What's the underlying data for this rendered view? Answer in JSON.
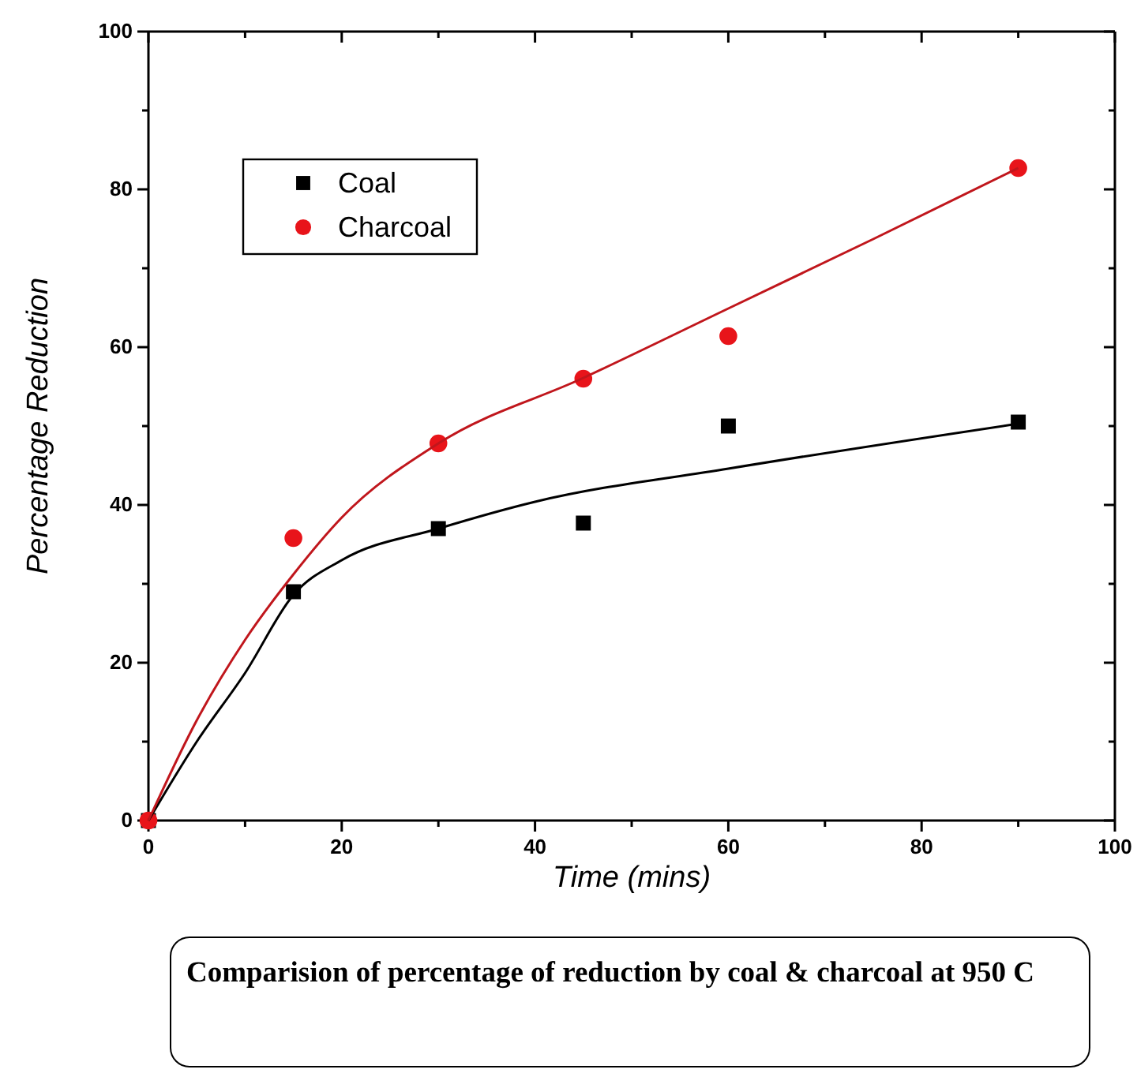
{
  "chart_data": {
    "type": "scatter",
    "xlabel": "Time (mins)",
    "ylabel": "Percentage Reduction",
    "xlim": [
      0,
      100
    ],
    "ylim": [
      0,
      100
    ],
    "xticks": [
      0,
      {
        "value": 10,
        "label": null
      },
      20,
      {
        "value": 30,
        "label": null
      },
      40,
      {
        "value": 50,
        "label": null
      },
      60,
      {
        "value": 70,
        "label": null
      },
      80,
      {
        "value": 90,
        "label": null
      },
      100
    ],
    "yticks": [
      0,
      {
        "value": 10,
        "label": null
      },
      20,
      {
        "value": 30,
        "label": null
      },
      40,
      {
        "value": 50,
        "label": null
      },
      60,
      {
        "value": 70,
        "label": null
      },
      80,
      {
        "value": 90,
        "label": null
      },
      100
    ],
    "legend": "top left",
    "grid": false,
    "series": [
      {
        "name": "Coal",
        "marker": "square",
        "color": "#000000",
        "x": [
          0,
          15,
          30,
          45,
          60,
          90
        ],
        "values": [
          0,
          29,
          37,
          37.7,
          50,
          50.5
        ]
      },
      {
        "name": "Charcoal",
        "marker": "circle",
        "color": "#e8141a",
        "x": [
          0,
          15,
          30,
          45,
          60,
          90
        ],
        "values": [
          0,
          35.8,
          47.8,
          56,
          61.4,
          82.7
        ]
      },
      {
        "type": "line",
        "marker": "none",
        "color": "#000000",
        "x": [
          0,
          5,
          10,
          15,
          20,
          30,
          40,
          60,
          90
        ],
        "values": [
          0,
          10,
          18.7,
          28.6,
          33,
          37,
          40.4,
          44.6,
          50.3
        ]
      },
      {
        "type": "line",
        "marker": "none",
        "color": "#c0161c",
        "x": [
          0,
          5,
          10,
          15,
          20,
          30,
          45,
          60,
          75,
          90
        ],
        "values": [
          0,
          12.7,
          22.9,
          31.2,
          38.4,
          47.8,
          56.1,
          64.9,
          73.7,
          82.7
        ]
      }
    ],
    "annotations": [
      "Comparision of percentage of reduction by coal & charcoal at 950 C"
    ]
  }
}
